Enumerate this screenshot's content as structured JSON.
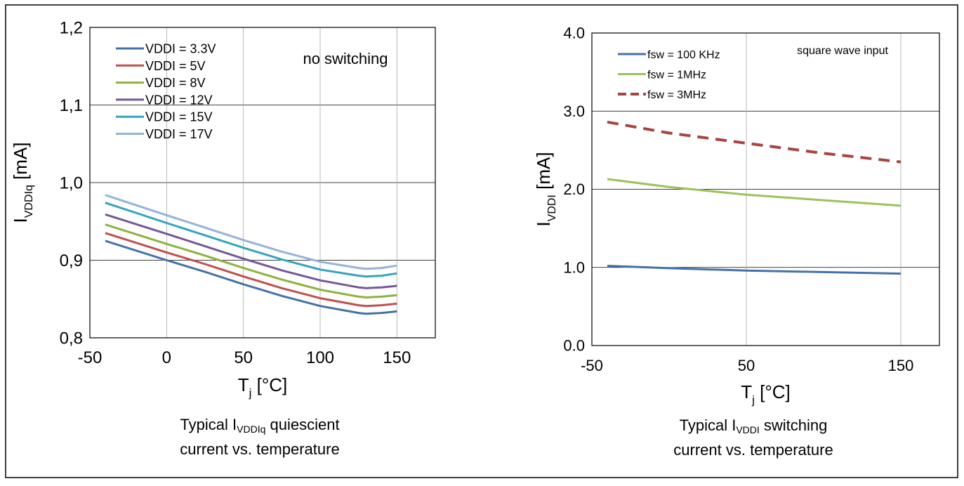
{
  "chart_data": [
    {
      "type": "line",
      "title_parts": {
        "a": "Typical I",
        "sub": "VDDIq",
        "b": " quiescient",
        "line2": "current vs. temperature"
      },
      "ylabel_parts": {
        "main": "I",
        "sub": "VDDIq",
        "unit": " [mA]"
      },
      "xlabel_parts": {
        "main": "T",
        "sub": "j",
        "unit": " [°C]"
      },
      "xlim": [
        -50,
        175
      ],
      "ylim": [
        0.8,
        1.2
      ],
      "x_ticks": [
        -50,
        0,
        50,
        100,
        150
      ],
      "x_tick_labels": [
        "-50",
        "0",
        "50",
        "100",
        "150"
      ],
      "y_ticks": [
        0.8,
        0.9,
        1.0,
        1.1,
        1.2
      ],
      "y_tick_labels": [
        "0,8",
        "0,9",
        "1,0",
        "1,1",
        "1,2"
      ],
      "grid": true,
      "legend_position": "top-left",
      "annotation": "no switching",
      "x": [
        -40,
        0,
        25,
        50,
        75,
        100,
        125,
        130,
        140,
        150
      ],
      "series": [
        {
          "name": "VDDI = 3.3V",
          "color": "#4472a8",
          "dash": false,
          "values": [
            0.925,
            0.9,
            0.885,
            0.869,
            0.854,
            0.841,
            0.832,
            0.831,
            0.832,
            0.834
          ]
        },
        {
          "name": "VDDI = 5V",
          "color": "#c0504d",
          "dash": false,
          "values": [
            0.935,
            0.91,
            0.895,
            0.879,
            0.864,
            0.851,
            0.842,
            0.841,
            0.842,
            0.844
          ]
        },
        {
          "name": "VDDI = 8V",
          "color": "#8db33e",
          "dash": false,
          "values": [
            0.946,
            0.921,
            0.906,
            0.89,
            0.875,
            0.862,
            0.853,
            0.852,
            0.853,
            0.855
          ]
        },
        {
          "name": "VDDI = 12V",
          "color": "#76579a",
          "dash": false,
          "values": [
            0.959,
            0.934,
            0.918,
            0.902,
            0.887,
            0.874,
            0.865,
            0.864,
            0.865,
            0.867
          ]
        },
        {
          "name": "VDDI = 15V",
          "color": "#33a5bd",
          "dash": false,
          "values": [
            0.974,
            0.948,
            0.932,
            0.916,
            0.901,
            0.888,
            0.88,
            0.879,
            0.88,
            0.883
          ]
        },
        {
          "name": "VDDI = 17V",
          "color": "#95b3d7",
          "dash": false,
          "values": [
            0.984,
            0.958,
            0.942,
            0.926,
            0.911,
            0.898,
            0.89,
            0.889,
            0.89,
            0.893
          ]
        }
      ]
    },
    {
      "type": "line",
      "title_parts": {
        "a": "Typical I",
        "sub": "VDDI",
        "b": " switching",
        "line2": "current vs. temperature"
      },
      "ylabel_parts": {
        "main": "I",
        "sub": "VDDI",
        "unit": " [mA]"
      },
      "xlabel_parts": {
        "main": "T",
        "sub": "j",
        "unit": " [°C]"
      },
      "xlim": [
        -50,
        175
      ],
      "ylim": [
        0.0,
        4.0
      ],
      "x_ticks": [
        -50,
        50,
        150
      ],
      "x_tick_labels": [
        "-50",
        "50",
        "150"
      ],
      "y_ticks": [
        0,
        1,
        2,
        3,
        4
      ],
      "y_tick_labels": [
        "0.0",
        "1.0",
        "2.0",
        "3.0",
        "4.0"
      ],
      "grid": true,
      "legend_position": "top-left",
      "annotation": "square wave input",
      "x": [
        -40,
        0,
        50,
        100,
        150
      ],
      "series": [
        {
          "name": "fsw = 100 KHz",
          "color": "#4472a8",
          "dash": false,
          "values": [
            1.02,
            0.99,
            0.96,
            0.94,
            0.92
          ]
        },
        {
          "name": "fsw = 1MHz",
          "color": "#9bc35a",
          "dash": false,
          "values": [
            2.13,
            2.03,
            1.93,
            1.86,
            1.79
          ]
        },
        {
          "name": "fsw = 3MHz",
          "color": "#a84341",
          "dash": true,
          "values": [
            2.86,
            2.72,
            2.59,
            2.46,
            2.35
          ]
        }
      ]
    }
  ]
}
